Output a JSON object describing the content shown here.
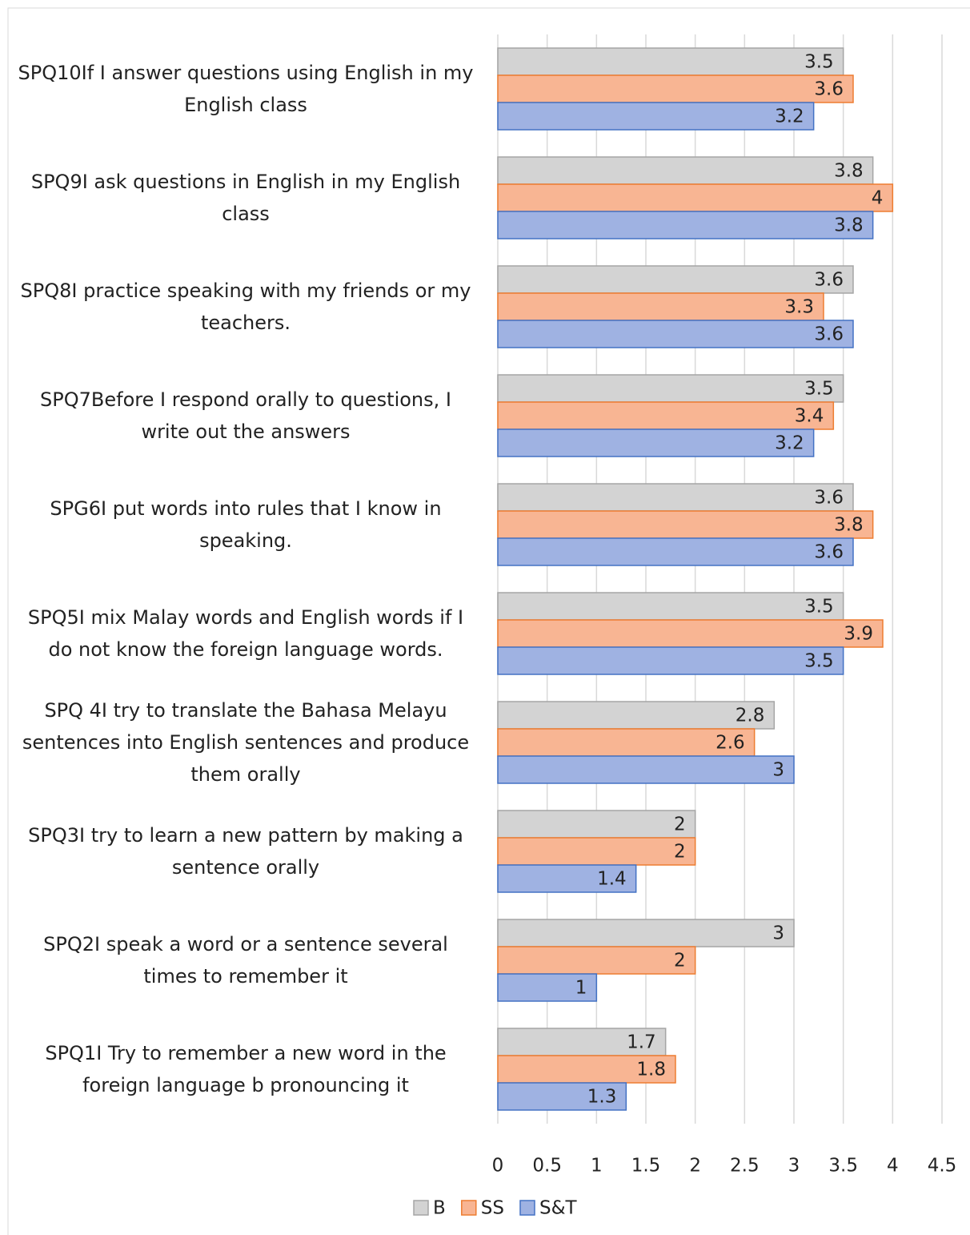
{
  "chart_data": {
    "type": "barh",
    "categories": [
      "SPQ10If I answer questions using English in my English class",
      "SPQ9I ask questions in English in my English class",
      "SPQ8I practice speaking with my friends or my teachers.",
      "SPQ7Before I respond orally to questions, I write out the answers",
      "SPG6I put words into rules that I know in speaking.",
      "SPQ5I mix Malay words and English words if I do not know the foreign language words.",
      "SPQ 4I try to translate the Bahasa Melayu sentences into English sentences and produce them orally",
      "SPQ3I try to learn a new pattern by making a sentence orally",
      "SPQ2I speak a word or a sentence several times to remember it",
      "SPQ1I Try to remember a new word in the foreign language b pronouncing it"
    ],
    "series": [
      {
        "name": "B",
        "color": "#d3d3d3",
        "values": [
          3.5,
          3.8,
          3.6,
          3.5,
          3.6,
          3.5,
          2.8,
          2,
          3,
          1.7
        ]
      },
      {
        "name": "SS",
        "color": "#f8b593",
        "values": [
          3.6,
          4,
          3.3,
          3.4,
          3.8,
          3.9,
          2.6,
          2,
          2,
          1.8
        ]
      },
      {
        "name": "S&T",
        "color": "#9fb2e2",
        "values": [
          3.2,
          3.8,
          3.6,
          3.2,
          3.6,
          3.5,
          3,
          1.4,
          1,
          1.3
        ]
      }
    ],
    "xlim": [
      0,
      4.5
    ],
    "xticks": [
      0,
      0.5,
      1,
      1.5,
      2,
      2.5,
      3,
      3.5,
      4,
      4.5
    ],
    "grid": true,
    "legend": "bottom",
    "data_labels": true
  }
}
